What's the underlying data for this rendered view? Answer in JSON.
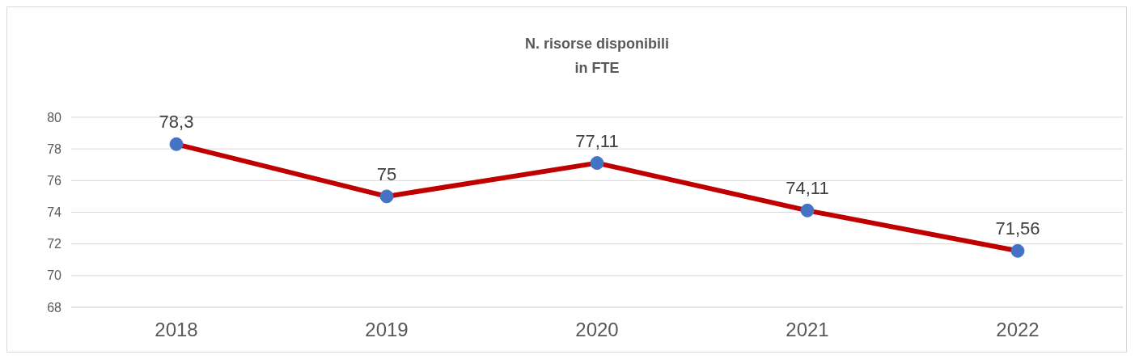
{
  "chart_data": {
    "type": "line",
    "title": "N. risorse disponibili\nin FTE",
    "categories": [
      "2018",
      "2019",
      "2020",
      "2021",
      "2022"
    ],
    "series": [
      {
        "color": "#c00000",
        "values": [
          78.3,
          75,
          77.11,
          74.11,
          71.56
        ],
        "value_labels": [
          "78,3",
          "75",
          "77,11",
          "74,11",
          "71,56"
        ]
      }
    ],
    "ylim": [
      68,
      80
    ],
    "yticks": [
      68,
      70,
      72,
      74,
      76,
      78,
      80
    ],
    "grid": "y",
    "marker": "circle",
    "line_style": "solid"
  }
}
